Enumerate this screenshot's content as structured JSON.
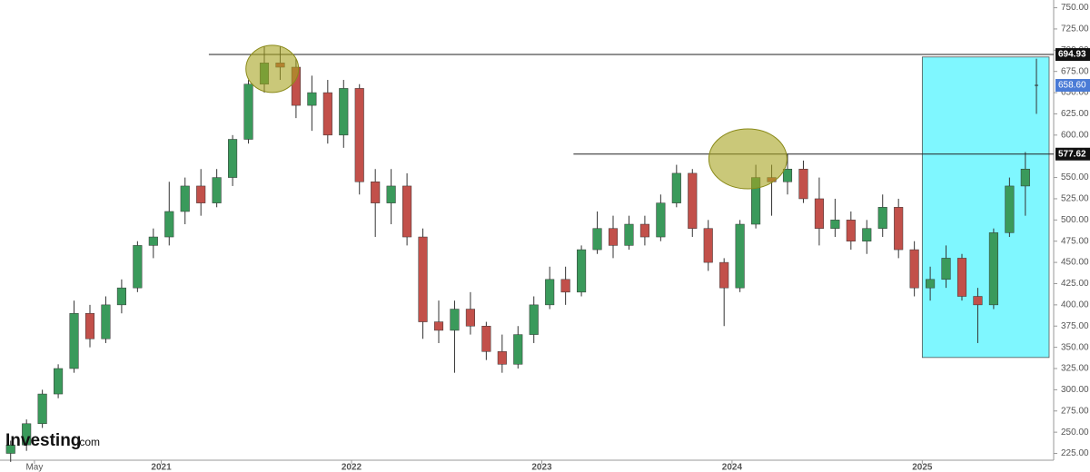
{
  "chart_data": {
    "type": "candlestick",
    "up_color": "#3a9a5b",
    "down_color": "#c2504a",
    "x": [
      "2020-03",
      "2020-04",
      "2020-05",
      "2020-06",
      "2020-07",
      "2020-08",
      "2020-09",
      "2020-10",
      "2020-11",
      "2020-12",
      "2021-01",
      "2021-02",
      "2021-03",
      "2021-04",
      "2021-05",
      "2021-06",
      "2021-07",
      "2021-08",
      "2021-09",
      "2021-10",
      "2021-11",
      "2021-12",
      "2022-01",
      "2022-02",
      "2022-03",
      "2022-04",
      "2022-05",
      "2022-06",
      "2022-07",
      "2022-08",
      "2022-09",
      "2022-10",
      "2022-11",
      "2022-12",
      "2023-01",
      "2023-02",
      "2023-03",
      "2023-04",
      "2023-05",
      "2023-06",
      "2023-07",
      "2023-08",
      "2023-09",
      "2023-10",
      "2023-11",
      "2023-12",
      "2024-01",
      "2024-02",
      "2024-03",
      "2024-04",
      "2024-05",
      "2024-06",
      "2024-07",
      "2024-08",
      "2024-09",
      "2024-10",
      "2024-11",
      "2024-12",
      "2025-01",
      "2025-02",
      "2025-03",
      "2025-04",
      "2025-05",
      "2025-06",
      "2025-07"
    ],
    "open": [
      225,
      235,
      260,
      295,
      325,
      390,
      360,
      400,
      420,
      470,
      480,
      510,
      540,
      520,
      550,
      595,
      660,
      685,
      680,
      635,
      650,
      600,
      655,
      545,
      520,
      540,
      480,
      380,
      370,
      395,
      375,
      345,
      330,
      365,
      400,
      430,
      415,
      465,
      490,
      470,
      495,
      480,
      520,
      555,
      490,
      450,
      420,
      495,
      550,
      545,
      560,
      525,
      490,
      500,
      475,
      490,
      515,
      465,
      420,
      430,
      455,
      410,
      400,
      485,
      540
    ],
    "high": [
      240,
      265,
      300,
      330,
      405,
      400,
      410,
      430,
      475,
      490,
      545,
      550,
      560,
      560,
      600,
      665,
      705,
      705,
      690,
      670,
      665,
      665,
      660,
      560,
      560,
      555,
      490,
      405,
      405,
      415,
      380,
      365,
      375,
      410,
      445,
      445,
      470,
      510,
      505,
      505,
      505,
      530,
      565,
      560,
      500,
      455,
      500,
      565,
      565,
      578,
      570,
      550,
      525,
      510,
      500,
      530,
      525,
      475,
      445,
      470,
      460,
      420,
      490,
      550,
      580
    ],
    "low": [
      215,
      228,
      255,
      290,
      320,
      350,
      355,
      390,
      415,
      455,
      470,
      495,
      505,
      515,
      540,
      590,
      650,
      665,
      620,
      605,
      590,
      585,
      530,
      480,
      495,
      470,
      360,
      355,
      320,
      365,
      335,
      320,
      325,
      355,
      395,
      400,
      410,
      460,
      455,
      465,
      470,
      475,
      515,
      480,
      440,
      375,
      415,
      490,
      505,
      530,
      520,
      470,
      480,
      465,
      460,
      480,
      455,
      410,
      405,
      420,
      405,
      355,
      395,
      480,
      505
    ],
    "close": [
      235,
      260,
      295,
      325,
      390,
      360,
      400,
      420,
      470,
      480,
      510,
      540,
      520,
      550,
      595,
      660,
      685,
      680,
      635,
      650,
      600,
      655,
      545,
      520,
      540,
      480,
      380,
      370,
      395,
      375,
      345,
      330,
      365,
      400,
      430,
      415,
      465,
      490,
      470,
      495,
      480,
      520,
      555,
      490,
      450,
      420,
      495,
      550,
      545,
      560,
      525,
      490,
      500,
      475,
      490,
      515,
      465,
      420,
      430,
      455,
      410,
      400,
      485,
      540,
      560
    ],
    "last_price": {
      "value": 658.6,
      "label": "658.60",
      "low": 625,
      "high": 690
    },
    "levels": [
      {
        "value": 694.93,
        "label": "694.93",
        "from": "2021-04"
      },
      {
        "value": 577.62,
        "label": "577.62",
        "from": "2023-03"
      }
    ],
    "highlights": [
      {
        "x": "2021-08",
        "y": 678
      },
      {
        "x": "2024-02",
        "y": 572
      }
    ],
    "zone": {
      "x": [
        "2025-01",
        "2025-09"
      ],
      "y": [
        338,
        692
      ]
    },
    "xlim": [
      "2020-03",
      "2025-09"
    ],
    "xticks": [
      {
        "value": "2020-05",
        "label": "May"
      },
      {
        "value": "2021-01",
        "label": "2021"
      },
      {
        "value": "2022-01",
        "label": "2022"
      },
      {
        "value": "2023-01",
        "label": "2023"
      },
      {
        "value": "2024-01",
        "label": "2024"
      },
      {
        "value": "2025-01",
        "label": "2025"
      }
    ],
    "ylim": [
      217,
      757
    ],
    "yticks": [
      {
        "value": 225,
        "label": "225.00"
      },
      {
        "value": 250,
        "label": "250.00"
      },
      {
        "value": 275,
        "label": "275.00"
      },
      {
        "value": 300,
        "label": "300.00"
      },
      {
        "value": 325,
        "label": "325.00"
      },
      {
        "value": 350,
        "label": "350.00"
      },
      {
        "value": 375,
        "label": "375.00"
      },
      {
        "value": 400,
        "label": "400.00"
      },
      {
        "value": 425,
        "label": "425.00"
      },
      {
        "value": 450,
        "label": "450.00"
      },
      {
        "value": 475,
        "label": "475.00"
      },
      {
        "value": 500,
        "label": "500.00"
      },
      {
        "value": 525,
        "label": "525.00"
      },
      {
        "value": 550,
        "label": "550.00"
      },
      {
        "value": 600,
        "label": "600.00"
      },
      {
        "value": 625,
        "label": "625.00"
      },
      {
        "value": 650,
        "label": "650.00"
      },
      {
        "value": 675,
        "label": "675.00"
      },
      {
        "value": 700,
        "label": "700.00"
      },
      {
        "value": 725,
        "label": "725.00"
      },
      {
        "value": 750,
        "label": "750.00"
      }
    ],
    "watermark": {
      "brand": "Investing",
      "suffix": ".com"
    }
  }
}
